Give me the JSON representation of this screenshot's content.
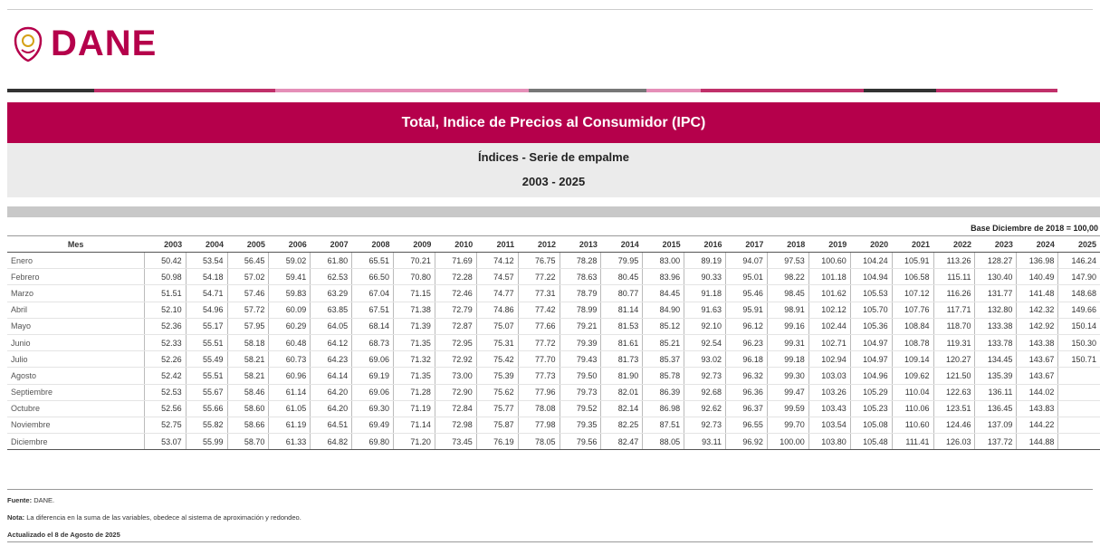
{
  "header": {
    "logo": "DANE",
    "title": "Total, Indice de Precios al Consumidor (IPC)",
    "subtitle": "Índices - Serie de empalme",
    "period": "2003 - 2025",
    "base": "Base Diciembre de 2018 = 100,00"
  },
  "table": {
    "columns": [
      "Mes",
      "2003",
      "2004",
      "2005",
      "2006",
      "2007",
      "2008",
      "2009",
      "2010",
      "2011",
      "2012",
      "2013",
      "2014",
      "2015",
      "2016",
      "2017",
      "2018",
      "2019",
      "2020",
      "2021",
      "2022",
      "2023",
      "2024",
      "2025"
    ],
    "rows": [
      [
        "Enero",
        "50.42",
        "53.54",
        "56.45",
        "59.02",
        "61.80",
        "65.51",
        "70.21",
        "71.69",
        "74.12",
        "76.75",
        "78.28",
        "79.95",
        "83.00",
        "89.19",
        "94.07",
        "97.53",
        "100.60",
        "104.24",
        "105.91",
        "113.26",
        "128.27",
        "136.98",
        "146.24"
      ],
      [
        "Febrero",
        "50.98",
        "54.18",
        "57.02",
        "59.41",
        "62.53",
        "66.50",
        "70.80",
        "72.28",
        "74.57",
        "77.22",
        "78.63",
        "80.45",
        "83.96",
        "90.33",
        "95.01",
        "98.22",
        "101.18",
        "104.94",
        "106.58",
        "115.11",
        "130.40",
        "140.49",
        "147.90"
      ],
      [
        "Marzo",
        "51.51",
        "54.71",
        "57.46",
        "59.83",
        "63.29",
        "67.04",
        "71.15",
        "72.46",
        "74.77",
        "77.31",
        "78.79",
        "80.77",
        "84.45",
        "91.18",
        "95.46",
        "98.45",
        "101.62",
        "105.53",
        "107.12",
        "116.26",
        "131.77",
        "141.48",
        "148.68"
      ],
      [
        "Abril",
        "52.10",
        "54.96",
        "57.72",
        "60.09",
        "63.85",
        "67.51",
        "71.38",
        "72.79",
        "74.86",
        "77.42",
        "78.99",
        "81.14",
        "84.90",
        "91.63",
        "95.91",
        "98.91",
        "102.12",
        "105.70",
        "107.76",
        "117.71",
        "132.80",
        "142.32",
        "149.66"
      ],
      [
        "Mayo",
        "52.36",
        "55.17",
        "57.95",
        "60.29",
        "64.05",
        "68.14",
        "71.39",
        "72.87",
        "75.07",
        "77.66",
        "79.21",
        "81.53",
        "85.12",
        "92.10",
        "96.12",
        "99.16",
        "102.44",
        "105.36",
        "108.84",
        "118.70",
        "133.38",
        "142.92",
        "150.14"
      ],
      [
        "Junio",
        "52.33",
        "55.51",
        "58.18",
        "60.48",
        "64.12",
        "68.73",
        "71.35",
        "72.95",
        "75.31",
        "77.72",
        "79.39",
        "81.61",
        "85.21",
        "92.54",
        "96.23",
        "99.31",
        "102.71",
        "104.97",
        "108.78",
        "119.31",
        "133.78",
        "143.38",
        "150.30"
      ],
      [
        "Julio",
        "52.26",
        "55.49",
        "58.21",
        "60.73",
        "64.23",
        "69.06",
        "71.32",
        "72.92",
        "75.42",
        "77.70",
        "79.43",
        "81.73",
        "85.37",
        "93.02",
        "96.18",
        "99.18",
        "102.94",
        "104.97",
        "109.14",
        "120.27",
        "134.45",
        "143.67",
        "150.71"
      ],
      [
        "Agosto",
        "52.42",
        "55.51",
        "58.21",
        "60.96",
        "64.14",
        "69.19",
        "71.35",
        "73.00",
        "75.39",
        "77.73",
        "79.50",
        "81.90",
        "85.78",
        "92.73",
        "96.32",
        "99.30",
        "103.03",
        "104.96",
        "109.62",
        "121.50",
        "135.39",
        "143.67"
      ],
      [
        "Septiembre",
        "52.53",
        "55.67",
        "58.46",
        "61.14",
        "64.20",
        "69.06",
        "71.28",
        "72.90",
        "75.62",
        "77.96",
        "79.73",
        "82.01",
        "86.39",
        "92.68",
        "96.36",
        "99.47",
        "103.26",
        "105.29",
        "110.04",
        "122.63",
        "136.11",
        "144.02"
      ],
      [
        "Octubre",
        "52.56",
        "55.66",
        "58.60",
        "61.05",
        "64.20",
        "69.30",
        "71.19",
        "72.84",
        "75.77",
        "78.08",
        "79.52",
        "82.14",
        "86.98",
        "92.62",
        "96.37",
        "99.59",
        "103.43",
        "105.23",
        "110.06",
        "123.51",
        "136.45",
        "143.83"
      ],
      [
        "Noviembre",
        "52.75",
        "55.82",
        "58.66",
        "61.19",
        "64.51",
        "69.49",
        "71.14",
        "72.98",
        "75.87",
        "77.98",
        "79.35",
        "82.25",
        "87.51",
        "92.73",
        "96.55",
        "99.70",
        "103.54",
        "105.08",
        "110.60",
        "124.46",
        "137.09",
        "144.22"
      ],
      [
        "Diciembre",
        "53.07",
        "55.99",
        "58.70",
        "61.33",
        "64.82",
        "69.80",
        "71.20",
        "73.45",
        "76.19",
        "78.05",
        "79.56",
        "82.47",
        "88.05",
        "93.11",
        "96.92",
        "100.00",
        "103.80",
        "105.48",
        "111.41",
        "126.03",
        "137.72",
        "144.88"
      ]
    ]
  },
  "footer": {
    "source_label": "Fuente:",
    "source": "DANE.",
    "note_label": "Nota:",
    "note": "La diferencia en la suma de las variables, obedece al sistema de aproximación y redondeo.",
    "updated": "Actualizado el 8 de Agosto de 2025"
  }
}
